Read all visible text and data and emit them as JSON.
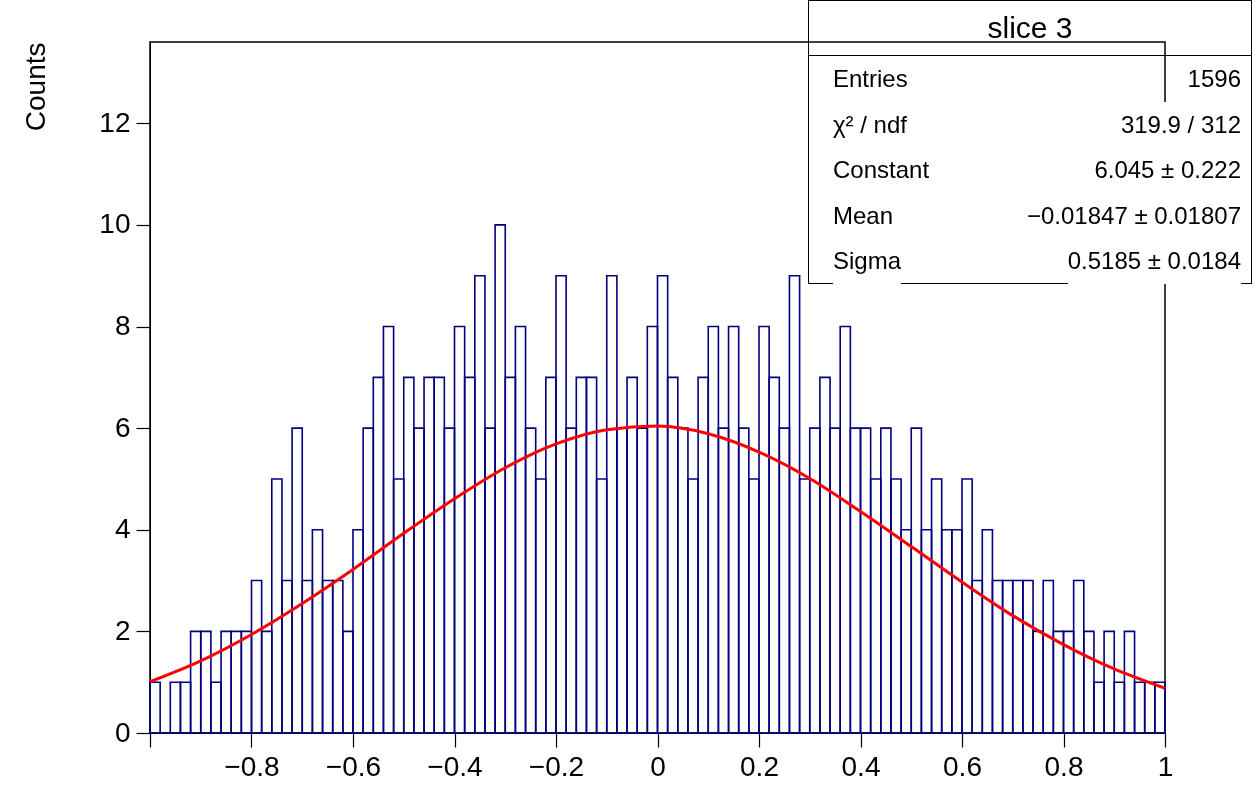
{
  "chart_data": {
    "type": "histogram",
    "ylabel": "Counts",
    "color": "#000080",
    "bins": [
      -1,
      -0.98,
      -0.96,
      -0.94,
      -0.92,
      -0.9,
      -0.88,
      -0.86,
      -0.84,
      -0.82,
      -0.8,
      -0.78,
      -0.76,
      -0.74,
      -0.72,
      -0.7,
      -0.68,
      -0.66,
      -0.64,
      -0.62,
      -0.6,
      -0.58,
      -0.56,
      -0.54,
      -0.52,
      -0.5,
      -0.48,
      -0.46,
      -0.44,
      -0.42,
      -0.4,
      -0.38,
      -0.36,
      -0.34,
      -0.32,
      -0.3,
      -0.28,
      -0.26,
      -0.24,
      -0.22,
      -0.2,
      -0.18,
      -0.16,
      -0.14,
      -0.12,
      -0.1,
      -0.08,
      -0.06,
      -0.04,
      -0.02,
      0,
      0.02,
      0.04,
      0.06,
      0.08,
      0.1,
      0.12,
      0.14,
      0.16,
      0.18,
      0.2,
      0.22,
      0.24,
      0.26,
      0.28,
      0.3,
      0.32,
      0.34,
      0.36,
      0.38,
      0.4,
      0.42,
      0.44,
      0.46,
      0.48,
      0.5,
      0.52,
      0.54,
      0.56,
      0.58,
      0.6,
      0.62,
      0.64,
      0.66,
      0.68,
      0.7,
      0.72,
      0.74,
      0.76,
      0.78,
      0.8,
      0.82,
      0.84,
      0.86,
      0.88,
      0.9,
      0.92,
      0.94,
      0.96,
      0.98,
      1
    ],
    "values": [
      1,
      0,
      1,
      1,
      2,
      2,
      1,
      2,
      2,
      2,
      3,
      2,
      5,
      3,
      6,
      3,
      4,
      3,
      3,
      2,
      4,
      6,
      7,
      8,
      5,
      7,
      6,
      7,
      7,
      6,
      8,
      7,
      9,
      6,
      10,
      7,
      8,
      6,
      5,
      7,
      9,
      6,
      7,
      7,
      5,
      9,
      6,
      7,
      6,
      8,
      9,
      7,
      6,
      5,
      7,
      8,
      6,
      8,
      6,
      5,
      8,
      7,
      6,
      9,
      5,
      6,
      7,
      6,
      8,
      6,
      6,
      5,
      6,
      5,
      4,
      6,
      4,
      5,
      4,
      4,
      5,
      3,
      4,
      3,
      3,
      3,
      3,
      2,
      3,
      2,
      2,
      3,
      2,
      1,
      2,
      1,
      2,
      1,
      1,
      1
    ],
    "series": [
      {
        "type": "line",
        "color": "#ff0000",
        "x": [
          -1,
          -0.9,
          -0.8,
          -0.7,
          -0.6,
          -0.5,
          -0.4,
          -0.3,
          -0.2,
          -0.1,
          0,
          0.1,
          0.2,
          0.3,
          0.4,
          0.5,
          0.6,
          0.7,
          0.8,
          0.9,
          1
        ],
        "values": [
          1.01,
          1.42,
          1.94,
          2.55,
          3.22,
          3.93,
          4.61,
          5.22,
          5.69,
          5.97,
          6.04,
          5.89,
          5.53,
          5.01,
          4.36,
          3.67,
          2.97,
          2.31,
          1.74,
          1.26,
          0.88
        ]
      }
    ],
    "xlim": [
      -1,
      1
    ],
    "xticks": [
      {
        "value": -1,
        "label": null
      },
      -0.8,
      -0.6,
      -0.4,
      -0.2,
      0,
      0.2,
      0.4,
      0.6,
      0.8,
      1
    ],
    "ylim": [
      0,
      13.6
    ],
    "yticks": [
      0,
      2,
      4,
      6,
      8,
      10,
      12
    ],
    "annotations": [
      "slice 3",
      "Entries",
      "1596",
      "χ² / ndf",
      "319.9 / 312",
      "Constant",
      "6.045 ± 0.222",
      "Mean",
      "−0.01847 ± 0.01807",
      "Sigma",
      "0.5185 ± 0.0184"
    ]
  }
}
